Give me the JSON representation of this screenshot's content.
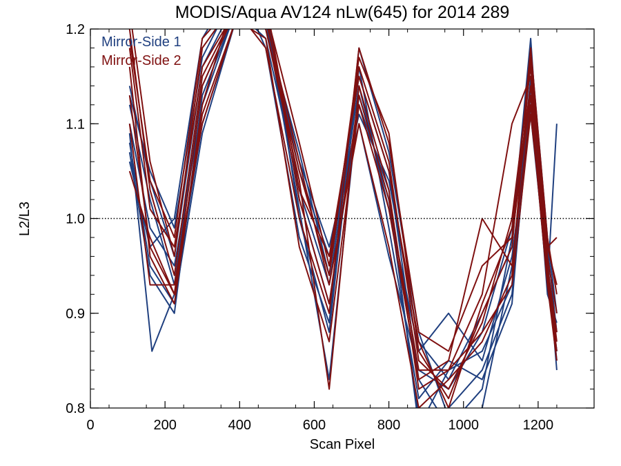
{
  "chart_data": {
    "type": "line",
    "title": "MODIS/Aqua AV124 nLw(645) for 2014 289",
    "xlabel": "Scan Pixel",
    "ylabel": "L2/L3",
    "xlim": [
      0,
      1350
    ],
    "ylim": [
      0.8,
      1.2
    ],
    "xticks": [
      0,
      200,
      400,
      600,
      800,
      1000,
      1200
    ],
    "yticks": [
      0.8,
      0.9,
      1.0,
      1.1,
      1.2
    ],
    "xtick_labels": [
      "0",
      "200",
      "400",
      "600",
      "800",
      "1000",
      "1200"
    ],
    "ytick_labels": [
      "0.8",
      "0.9",
      "1.0",
      "1.1",
      "1.2"
    ],
    "reference_line": 1.0,
    "legend": {
      "placement": "top-left",
      "entries": [
        {
          "label": "Mirror-Side 1",
          "color": "#1f3f7f"
        },
        {
          "label": "Mirror-Side 2",
          "color": "#7f1010"
        }
      ]
    },
    "series": [
      {
        "mirror_side": 1,
        "color": "#1f3f7f",
        "x": [
          105,
          160,
          225,
          300,
          390,
          470,
          560,
          640,
          720,
          800,
          880,
          960,
          1050,
          1130,
          1180,
          1225,
          1250
        ],
        "y": [
          1.12,
          1.02,
          0.93,
          1.14,
          1.22,
          1.2,
          1.07,
          0.94,
          1.15,
          1.05,
          0.83,
          0.78,
          0.82,
          0.98,
          1.19,
          0.93,
          1.1
        ]
      },
      {
        "mirror_side": 1,
        "color": "#1f3f7f",
        "x": [
          105,
          165,
          225,
          300,
          390,
          470,
          560,
          640,
          720,
          800,
          880,
          960,
          1050,
          1130,
          1180,
          1225,
          1250
        ],
        "y": [
          1.09,
          0.86,
          0.92,
          1.1,
          1.21,
          1.22,
          1.02,
          0.91,
          1.12,
          1.03,
          0.78,
          0.84,
          0.86,
          0.93,
          1.15,
          0.92,
          0.89
        ]
      },
      {
        "mirror_side": 1,
        "color": "#1f3f7f",
        "x": [
          105,
          160,
          225,
          300,
          390,
          470,
          560,
          640,
          720,
          800,
          880,
          960,
          1050,
          1130,
          1180,
          1225,
          1250
        ],
        "y": [
          1.06,
          0.97,
          1.0,
          1.19,
          1.25,
          1.18,
          0.98,
          0.89,
          1.18,
          1.07,
          0.88,
          0.79,
          0.8,
          0.95,
          1.13,
          0.95,
          0.85
        ]
      },
      {
        "mirror_side": 1,
        "color": "#1f3f7f",
        "x": [
          105,
          160,
          225,
          300,
          390,
          470,
          560,
          640,
          720,
          800,
          880,
          960,
          1050,
          1130,
          1180,
          1225,
          1250
        ],
        "y": [
          1.14,
          1.04,
          0.96,
          1.16,
          1.23,
          1.21,
          1.05,
          0.96,
          1.1,
          0.96,
          0.84,
          0.82,
          0.88,
          0.99,
          1.17,
          0.97,
          0.88
        ]
      },
      {
        "mirror_side": 1,
        "color": "#1f3f7f",
        "x": [
          105,
          160,
          225,
          300,
          390,
          470,
          560,
          640,
          720,
          800,
          880,
          960,
          1050,
          1130,
          1180,
          1225,
          1250
        ],
        "y": [
          1.1,
          0.99,
          0.95,
          1.12,
          1.22,
          1.19,
          1.03,
          0.93,
          1.14,
          1.01,
          0.86,
          0.9,
          0.85,
          0.96,
          1.11,
          0.94,
          0.86
        ]
      },
      {
        "mirror_side": 1,
        "color": "#1f3f7f",
        "x": [
          105,
          160,
          225,
          300,
          390,
          470,
          560,
          640,
          720,
          800,
          880,
          960,
          1050,
          1130,
          1180,
          1225,
          1250
        ],
        "y": [
          1.08,
          0.95,
          0.91,
          1.09,
          1.21,
          1.23,
          1.0,
          0.88,
          1.16,
          0.99,
          0.81,
          0.85,
          0.83,
          0.91,
          1.14,
          0.96,
          0.84
        ]
      },
      {
        "mirror_side": 1,
        "color": "#1f3f7f",
        "x": [
          105,
          160,
          225,
          300,
          390,
          470,
          560,
          640,
          720,
          800,
          880,
          960,
          1050,
          1130,
          1180,
          1225,
          1250
        ],
        "y": [
          1.13,
          1.05,
          0.99,
          1.17,
          1.24,
          1.2,
          1.06,
          0.97,
          1.11,
          1.04,
          0.87,
          0.83,
          0.9,
          0.97,
          1.18,
          0.98,
          0.9
        ]
      },
      {
        "mirror_side": 1,
        "color": "#1f3f7f",
        "x": [
          105,
          160,
          225,
          300,
          390,
          470,
          560,
          640,
          720,
          800,
          880,
          960,
          1050,
          1130,
          1180,
          1225,
          1250
        ],
        "y": [
          1.07,
          0.94,
          0.9,
          1.13,
          1.22,
          1.21,
          1.01,
          0.83,
          1.13,
          1.02,
          0.79,
          0.8,
          0.84,
          0.92,
          1.12,
          0.93,
          0.86
        ]
      },
      {
        "mirror_side": 2,
        "color": "#7f1010",
        "x": [
          105,
          160,
          225,
          300,
          390,
          470,
          560,
          640,
          720,
          800,
          880,
          960,
          1050,
          1130,
          1180,
          1225,
          1250
        ],
        "y": [
          1.22,
          1.06,
          0.96,
          1.18,
          1.23,
          1.22,
          1.08,
          0.95,
          1.16,
          1.06,
          0.85,
          0.82,
          0.89,
          1.0,
          1.16,
          0.97,
          0.93
        ]
      },
      {
        "mirror_side": 2,
        "color": "#7f1010",
        "x": [
          105,
          160,
          225,
          300,
          390,
          470,
          560,
          640,
          720,
          800,
          880,
          960,
          1050,
          1130,
          1180,
          1225,
          1250
        ],
        "y": [
          1.05,
          0.98,
          0.92,
          1.11,
          1.21,
          1.2,
          1.04,
          0.82,
          1.14,
          1.03,
          0.82,
          0.84,
          0.92,
          1.1,
          1.15,
          0.95,
          0.88
        ]
      },
      {
        "mirror_side": 2,
        "color": "#7f1010",
        "x": [
          105,
          160,
          225,
          300,
          390,
          470,
          560,
          640,
          720,
          800,
          880,
          960,
          1050,
          1130,
          1180,
          1225,
          1250
        ],
        "y": [
          1.2,
          1.03,
          0.94,
          1.15,
          1.22,
          1.18,
          1.0,
          0.9,
          1.18,
          1.08,
          0.88,
          0.86,
          0.95,
          0.98,
          1.13,
          0.94,
          0.86
        ]
      },
      {
        "mirror_side": 2,
        "color": "#7f1010",
        "x": [
          105,
          160,
          225,
          300,
          390,
          470,
          560,
          640,
          720,
          800,
          880,
          960,
          1050,
          1130,
          1180,
          1225,
          1250
        ],
        "y": [
          1.16,
          0.96,
          0.91,
          1.12,
          1.24,
          1.21,
          1.06,
          0.93,
          1.1,
          0.97,
          0.8,
          0.83,
          0.87,
          0.94,
          1.17,
          0.96,
          0.9
        ]
      },
      {
        "mirror_side": 2,
        "color": "#7f1010",
        "x": [
          105,
          160,
          225,
          300,
          390,
          470,
          560,
          640,
          720,
          800,
          880,
          960,
          1050,
          1130,
          1180,
          1225,
          1250
        ],
        "y": [
          1.18,
          1.01,
          0.97,
          1.16,
          1.22,
          1.23,
          1.03,
          0.96,
          1.15,
          1.05,
          0.87,
          0.8,
          0.91,
          0.99,
          1.14,
          0.97,
          0.98
        ]
      },
      {
        "mirror_side": 2,
        "color": "#7f1010",
        "x": [
          105,
          160,
          225,
          300,
          390,
          470,
          560,
          640,
          720,
          800,
          880,
          960,
          1050,
          1130,
          1180,
          1225,
          1250
        ],
        "y": [
          1.1,
          0.93,
          0.93,
          1.1,
          1.21,
          1.19,
          0.97,
          0.87,
          1.12,
          1.01,
          0.83,
          0.85,
          1.0,
          0.95,
          1.12,
          0.93,
          0.85
        ]
      },
      {
        "mirror_side": 2,
        "color": "#7f1010",
        "x": [
          105,
          160,
          225,
          300,
          390,
          470,
          560,
          640,
          720,
          800,
          880,
          960,
          1050,
          1130,
          1180,
          1225,
          1250
        ],
        "y": [
          1.19,
          1.04,
          0.98,
          1.19,
          1.23,
          1.2,
          1.05,
          0.94,
          1.17,
          1.09,
          0.86,
          0.81,
          0.9,
          0.97,
          1.18,
          0.98,
          0.92
        ]
      },
      {
        "mirror_side": 2,
        "color": "#7f1010",
        "x": [
          105,
          160,
          225,
          300,
          390,
          470,
          560,
          640,
          720,
          800,
          880,
          960,
          1050,
          1130,
          1180,
          1225,
          1250
        ],
        "y": [
          1.13,
          0.97,
          0.92,
          1.14,
          1.22,
          1.22,
          1.02,
          0.91,
          1.13,
          1.02,
          0.84,
          0.84,
          0.88,
          0.93,
          1.11,
          0.95,
          0.87
        ]
      }
    ]
  }
}
